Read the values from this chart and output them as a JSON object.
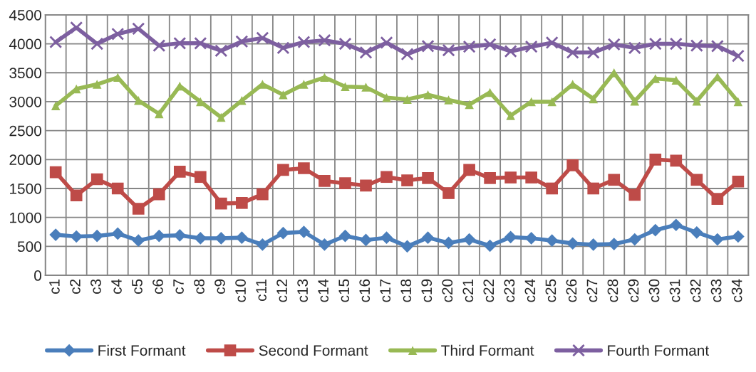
{
  "chart_data": {
    "type": "line",
    "categories": [
      "c1",
      "c2",
      "c3",
      "c4",
      "c5",
      "c6",
      "c7",
      "c8",
      "c9",
      "c10",
      "c11",
      "c12",
      "c13",
      "c14",
      "c15",
      "c16",
      "c17",
      "c18",
      "c19",
      "c20",
      "c21",
      "c22",
      "c23",
      "c24",
      "c25",
      "c26",
      "c27",
      "c28",
      "c29",
      "c30",
      "c31",
      "c32",
      "c33",
      "c34"
    ],
    "series": [
      {
        "name": "First Formant",
        "color": "#4a7ebb",
        "marker": "diamond",
        "values": [
          700,
          670,
          680,
          720,
          600,
          680,
          690,
          640,
          640,
          650,
          530,
          730,
          750,
          530,
          680,
          610,
          650,
          500,
          650,
          560,
          620,
          510,
          660,
          640,
          600,
          550,
          530,
          540,
          620,
          780,
          870,
          740,
          620,
          670
        ]
      },
      {
        "name": "Second Formant",
        "color": "#be4b48",
        "marker": "square",
        "values": [
          1780,
          1380,
          1660,
          1500,
          1150,
          1400,
          1790,
          1700,
          1240,
          1250,
          1400,
          1820,
          1850,
          1630,
          1590,
          1550,
          1700,
          1640,
          1680,
          1420,
          1820,
          1680,
          1690,
          1690,
          1500,
          1900,
          1500,
          1650,
          1390,
          2000,
          1980,
          1650,
          1320,
          1620
        ]
      },
      {
        "name": "Third Formant",
        "color": "#98b954",
        "marker": "triangle",
        "values": [
          2930,
          3220,
          3300,
          3420,
          3020,
          2790,
          3270,
          3000,
          2730,
          3020,
          3300,
          3120,
          3300,
          3420,
          3260,
          3250,
          3070,
          3040,
          3120,
          3030,
          2950,
          3160,
          2760,
          3000,
          3000,
          3300,
          3050,
          3500,
          3010,
          3400,
          3370,
          3010,
          3430,
          3000
        ]
      },
      {
        "name": "Fourth Formant",
        "color": "#7d5fa0",
        "marker": "cross",
        "values": [
          4030,
          4280,
          4000,
          4170,
          4260,
          3970,
          4010,
          4010,
          3880,
          4040,
          4100,
          3930,
          4030,
          4060,
          4000,
          3850,
          4020,
          3820,
          3960,
          3890,
          3950,
          3990,
          3870,
          3950,
          4020,
          3850,
          3850,
          3990,
          3930,
          4000,
          4000,
          3970,
          3960,
          3790
        ]
      }
    ],
    "ylim": [
      0,
      4500
    ],
    "yticks": [
      0,
      500,
      1000,
      1500,
      2000,
      2500,
      3000,
      3500,
      4000,
      4500
    ],
    "grid": true,
    "legend": "bottom"
  }
}
